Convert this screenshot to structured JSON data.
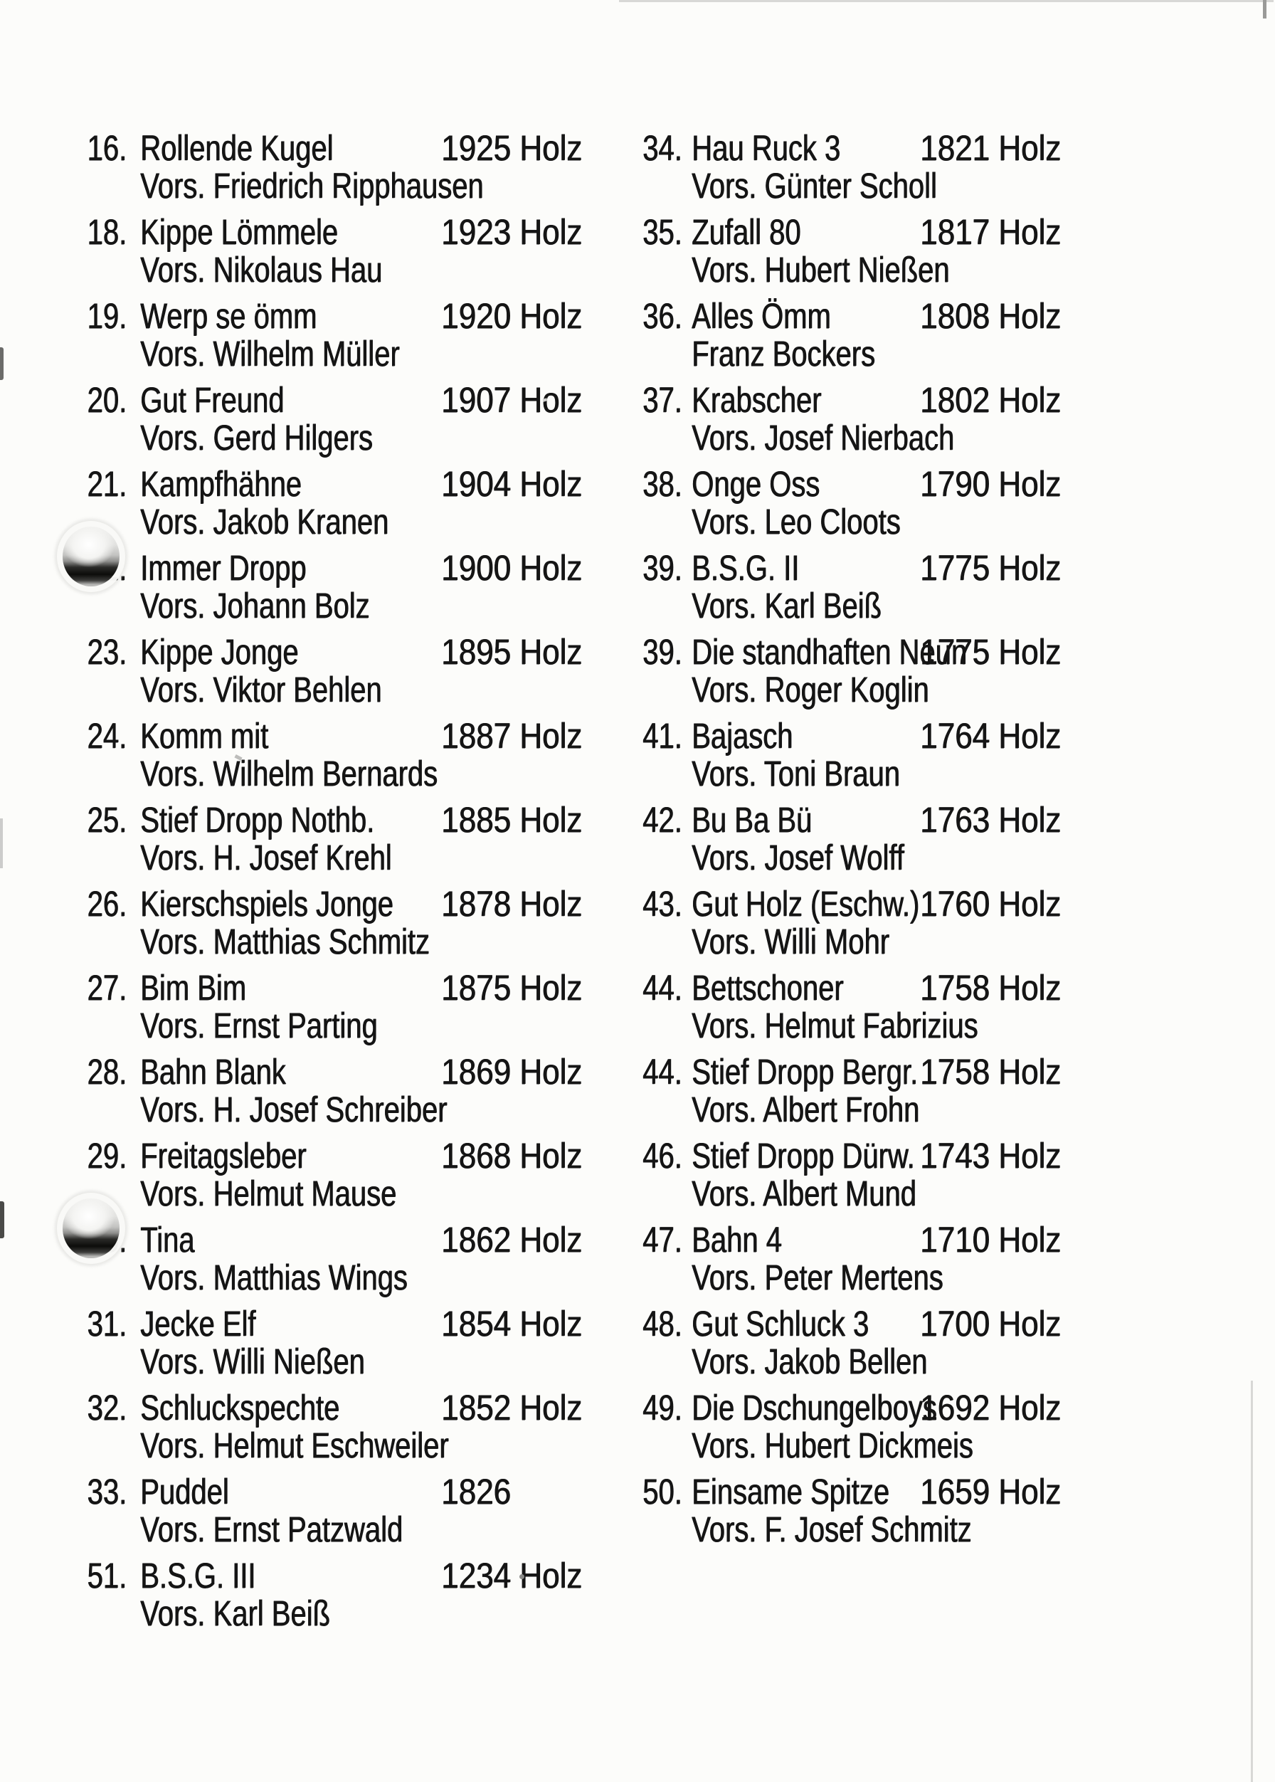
{
  "colors": {
    "ink": "#151515",
    "paper": "#fcfcfa"
  },
  "list": {
    "unit_label": "Holz",
    "left_column": [
      {
        "rank": "16.",
        "team": "Rollende Kugel",
        "score": "1925 Holz",
        "leader": "Vors. Friedrich Ripphausen"
      },
      {
        "rank": "18.",
        "team": "Kippe Lömmele",
        "score": "1923 Holz",
        "leader": "Vors. Nikolaus Hau"
      },
      {
        "rank": "19.",
        "team": "Werp se ömm",
        "score": "1920 Holz",
        "leader": "Vors. Wilhelm Müller"
      },
      {
        "rank": "20.",
        "team": "Gut Freund",
        "score": "1907 Holz",
        "leader": "Vors. Gerd Hilgers"
      },
      {
        "rank": "21.",
        "team": "Kampfhähne",
        "score": "1904 Holz",
        "leader": "Vors. Jakob Kranen"
      },
      {
        "rank": "22.",
        "team": "Immer Dropp",
        "score": "1900 Holz",
        "leader": "Vors. Johann Bolz",
        "sticker": true
      },
      {
        "rank": "23.",
        "team": "Kippe Jonge",
        "score": "1895 Holz",
        "leader": "Vors. Viktor Behlen"
      },
      {
        "rank": "24.",
        "team": "Komm mit",
        "score": "1887 Holz",
        "leader": "Vors. Wilhelm Bernards"
      },
      {
        "rank": "25.",
        "team": "Stief Dropp Nothb.",
        "score": "1885 Holz",
        "leader": "Vors. H. Josef Krehl"
      },
      {
        "rank": "26.",
        "team": "Kierschspiels Jonge",
        "score": "1878 Holz",
        "leader": "Vors. Matthias Schmitz"
      },
      {
        "rank": "27.",
        "team": "Bim Bim",
        "score": "1875 Holz",
        "leader": "Vors. Ernst Parting"
      },
      {
        "rank": "28.",
        "team": "Bahn Blank",
        "score": "1869 Holz",
        "leader": "Vors. H. Josef Schreiber"
      },
      {
        "rank": "29.",
        "team": "Freitagsleber",
        "score": "1868 Holz",
        "leader": "Vors. Helmut Mause"
      },
      {
        "rank": "30.",
        "team": "Tina",
        "score": "1862 Holz",
        "leader": "Vors. Matthias Wings",
        "sticker": true
      },
      {
        "rank": "31.",
        "team": "Jecke Elf",
        "score": "1854 Holz",
        "leader": "Vors. Willi Nießen"
      },
      {
        "rank": "32.",
        "team": "Schluckspechte",
        "score": "1852 Holz",
        "leader": "Vors. Helmut Eschweiler"
      },
      {
        "rank": "33.",
        "team": "Puddel",
        "score": "1826",
        "leader": "Vors. Ernst Patzwald"
      },
      {
        "rank": "51.",
        "team": "B.S.G. III",
        "score": "1234 Holz",
        "leader": "Vors. Karl Beiß"
      }
    ],
    "right_column": [
      {
        "rank": "34.",
        "team": "Hau Ruck 3",
        "score": "1821 Holz",
        "leader": "Vors. Günter Scholl"
      },
      {
        "rank": "35.",
        "team": "Zufall 80",
        "score": "1817 Holz",
        "leader": "Vors. Hubert Nießen"
      },
      {
        "rank": "36.",
        "team": "Alles Ömm",
        "score": "1808 Holz",
        "leader": "Franz Bockers"
      },
      {
        "rank": "37.",
        "team": "Krabscher",
        "score": "1802 Holz",
        "leader": "Vors. Josef Nierbach"
      },
      {
        "rank": "38.",
        "team": "Onge Oss",
        "score": "1790 Holz",
        "leader": "Vors. Leo Cloots"
      },
      {
        "rank": "39.",
        "team": "B.S.G. II",
        "score": "1775 Holz",
        "leader": "Vors. Karl Beiß"
      },
      {
        "rank": "39.",
        "team": "Die standhaften Neun",
        "score": "1775 Holz",
        "leader": "Vors. Roger Koglin"
      },
      {
        "rank": "41.",
        "team": "Bajasch",
        "score": "1764 Holz",
        "leader": "Vors. Toni Braun"
      },
      {
        "rank": "42.",
        "team": "Bu Ba Bü",
        "score": "1763 Holz",
        "leader": "Vors. Josef Wolff"
      },
      {
        "rank": "43.",
        "team": "Gut Holz (Eschw.)",
        "score": "1760 Holz",
        "leader": "Vors. Willi Mohr"
      },
      {
        "rank": "44.",
        "team": "Bettschoner",
        "score": "1758 Holz",
        "leader": "Vors. Helmut Fabrizius"
      },
      {
        "rank": "44.",
        "team": "Stief Dropp Bergr.",
        "score": "1758 Holz",
        "leader": "Vors. Albert Frohn"
      },
      {
        "rank": "46.",
        "team": "Stief Dropp Dürw.",
        "score": "1743 Holz",
        "leader": "Vors. Albert Mund"
      },
      {
        "rank": "47.",
        "team": "Bahn 4",
        "score": "1710 Holz",
        "leader": "Vors. Peter Mertens"
      },
      {
        "rank": "48.",
        "team": "Gut Schluck 3",
        "score": "1700 Holz",
        "leader": "Vors. Jakob Bellen"
      },
      {
        "rank": "49.",
        "team": "Die Dschungelboys",
        "score": "1692 Holz",
        "leader": "Vors. Hubert Dickmeis"
      },
      {
        "rank": "50.",
        "team": "Einsame Spitze",
        "score": "1659 Holz",
        "leader": "Vors. F. Josef Schmitz"
      }
    ]
  }
}
